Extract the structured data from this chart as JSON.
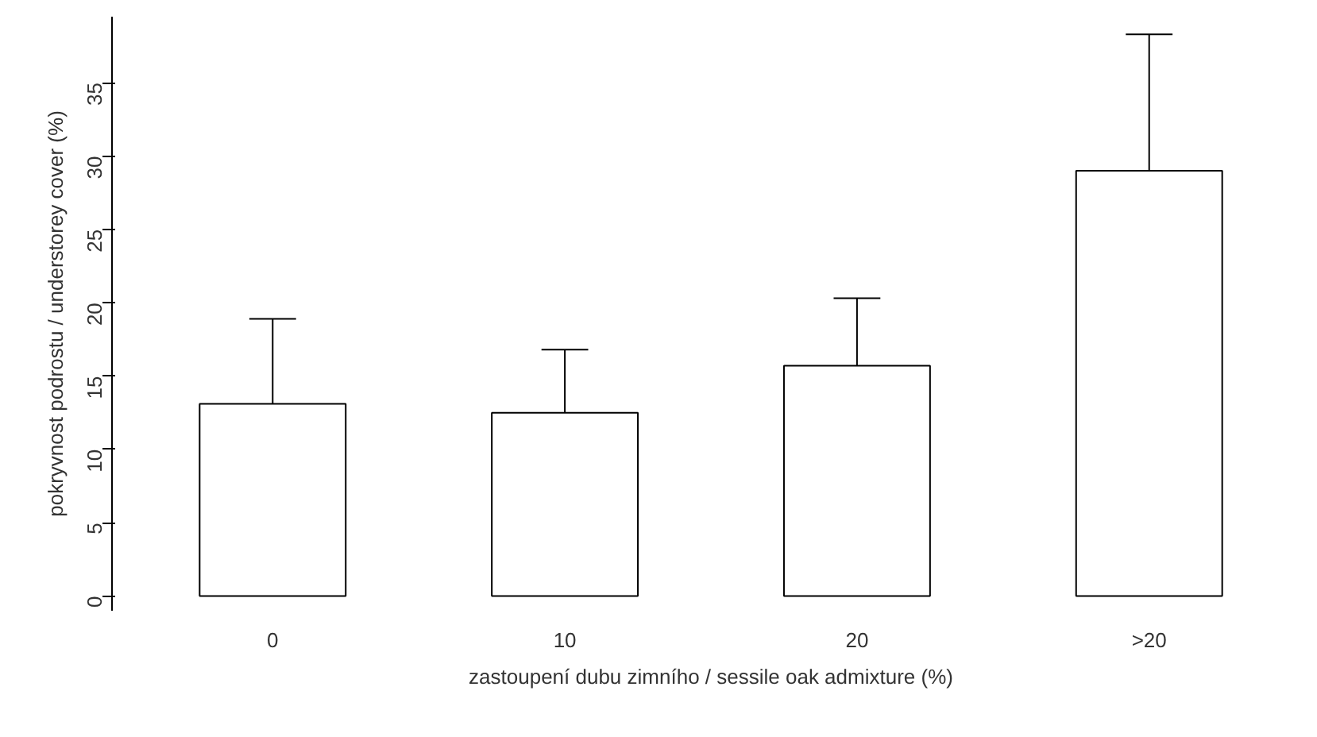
{
  "chart_data": {
    "type": "bar",
    "xlabel": "zastoupení dubu zimního / sessile oak admixture (%)",
    "ylabel": "pokryvnost podrostu / understorey cover (%)",
    "categories": [
      "0",
      "10",
      "20",
      ">20"
    ],
    "values": [
      13.1,
      12.5,
      15.7,
      29.0
    ],
    "errors": [
      [
        13.1,
        18.9
      ],
      [
        12.5,
        16.8
      ],
      [
        15.7,
        20.3
      ],
      [
        29.0,
        38.3
      ]
    ],
    "color": "#ffffff",
    "ylim": [
      -1,
      39.5
    ],
    "yticks": [
      0,
      5,
      10,
      15,
      20,
      25,
      30,
      35
    ],
    "grid": false
  }
}
